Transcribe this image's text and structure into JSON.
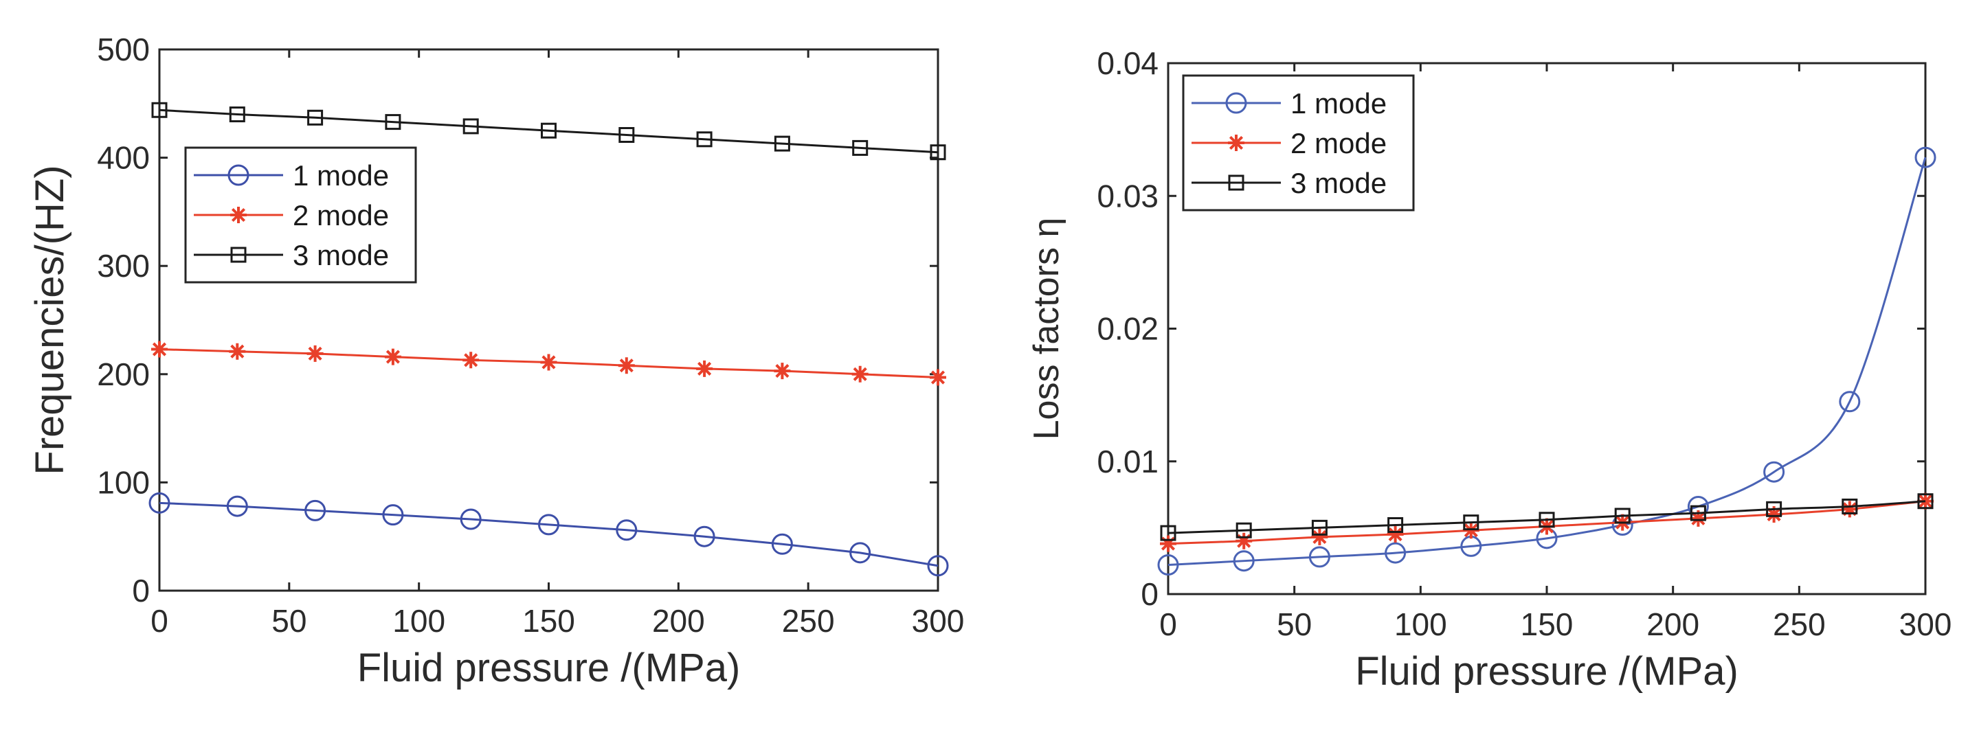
{
  "chart_data": [
    {
      "type": "line",
      "title": "",
      "xlabel": "Fluid pressure /(MPa)",
      "ylabel": "Frequencies/(HZ)",
      "xlim": [
        0,
        300
      ],
      "ylim": [
        0,
        500
      ],
      "xticks": [
        0,
        50,
        100,
        150,
        200,
        250,
        300
      ],
      "xtick_labels": [
        "0",
        "50",
        "100",
        "150",
        "200",
        "250",
        "300"
      ],
      "yticks": [
        0,
        100,
        200,
        300,
        400,
        500
      ],
      "ytick_labels": [
        "0",
        "100",
        "200",
        "300",
        "400",
        "500"
      ],
      "grid": false,
      "legend_position": "upper-left",
      "x": [
        0,
        30,
        60,
        90,
        120,
        150,
        180,
        210,
        240,
        270,
        300
      ],
      "series": [
        {
          "name": "1 mode",
          "color": "#3d4fa8",
          "marker": "circle",
          "values": [
            81,
            78,
            74,
            70,
            66,
            61,
            56,
            50,
            43,
            35,
            23
          ]
        },
        {
          "name": "2 mode",
          "color": "#e8402a",
          "marker": "asterisk",
          "values": [
            223,
            221,
            219,
            216,
            213,
            211,
            208,
            205,
            203,
            200,
            197
          ]
        },
        {
          "name": "3 mode",
          "color": "#1a1a1a",
          "marker": "square",
          "values": [
            444,
            440,
            437,
            433,
            429,
            425,
            421,
            417,
            413,
            409,
            405
          ]
        }
      ]
    },
    {
      "type": "line",
      "title": "",
      "xlabel": "Fluid pressure /(MPa)",
      "ylabel": "Loss factors η",
      "xlim": [
        0,
        300
      ],
      "ylim": [
        0,
        0.04
      ],
      "xticks": [
        0,
        50,
        100,
        150,
        200,
        250,
        300
      ],
      "xtick_labels": [
        "0",
        "50",
        "100",
        "150",
        "200",
        "250",
        "300"
      ],
      "yticks": [
        0,
        0.01,
        0.02,
        0.03,
        0.04
      ],
      "ytick_labels": [
        "0",
        "0.01",
        "0.02",
        "0.03",
        "0.04"
      ],
      "grid": false,
      "legend_position": "upper-left",
      "x": [
        0,
        30,
        60,
        90,
        120,
        150,
        180,
        210,
        240,
        270,
        300
      ],
      "series": [
        {
          "name": "1 mode",
          "color": "#4a63b5",
          "marker": "circle",
          "values": [
            0.0022,
            0.0025,
            0.0028,
            0.0031,
            0.0036,
            0.0042,
            0.0052,
            0.0066,
            0.0092,
            0.0145,
            0.0329
          ]
        },
        {
          "name": "2 mode",
          "color": "#e8402a",
          "marker": "asterisk",
          "values": [
            0.0038,
            0.004,
            0.0043,
            0.0045,
            0.0048,
            0.0051,
            0.0054,
            0.0057,
            0.006,
            0.0064,
            0.007
          ]
        },
        {
          "name": "3 mode",
          "color": "#1a1a1a",
          "marker": "square",
          "values": [
            0.0046,
            0.0048,
            0.005,
            0.0052,
            0.0054,
            0.0056,
            0.0059,
            0.0061,
            0.0064,
            0.0066,
            0.007
          ]
        }
      ]
    }
  ]
}
